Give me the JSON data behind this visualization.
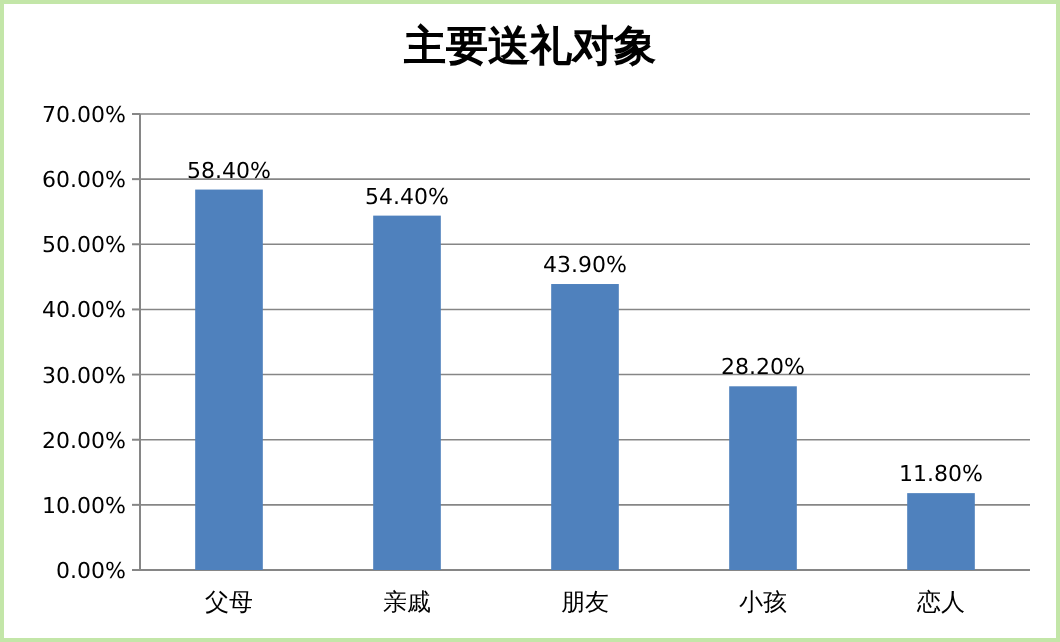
{
  "chart_data": {
    "type": "bar",
    "title": "主要送礼对象",
    "categories": [
      "父母",
      "亲戚",
      "朋友",
      "小孩",
      "恋人"
    ],
    "values": [
      58.4,
      54.4,
      43.9,
      28.2,
      11.8
    ],
    "value_labels": [
      "58.40%",
      "54.40%",
      "43.90%",
      "28.20%",
      "11.80%"
    ],
    "color": "#4f81bd",
    "ylim": [
      0,
      70
    ],
    "yticks": [
      {
        "value": 0,
        "label": "0.00%"
      },
      {
        "value": 10,
        "label": "10.00%"
      },
      {
        "value": 20,
        "label": "20.00%"
      },
      {
        "value": 30,
        "label": "30.00%"
      },
      {
        "value": 40,
        "label": "40.00%"
      },
      {
        "value": 50,
        "label": "50.00%"
      },
      {
        "value": 60,
        "label": "60.00%"
      },
      {
        "value": 70,
        "label": "70.00%"
      }
    ],
    "grid": "y"
  }
}
